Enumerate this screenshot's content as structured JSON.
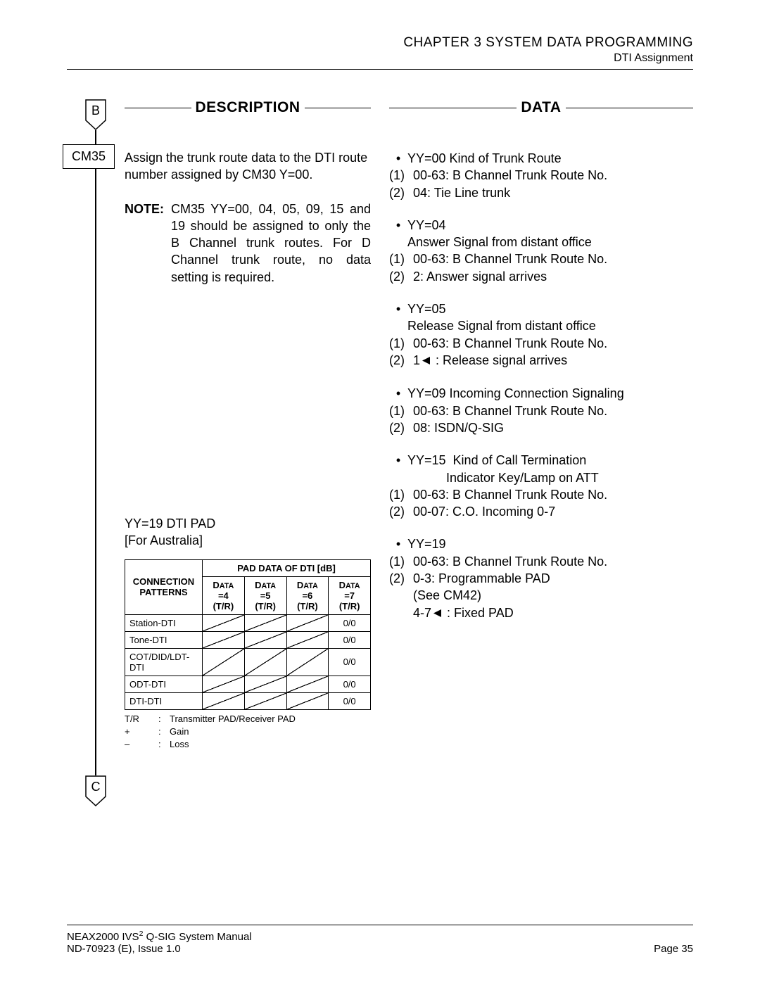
{
  "header": {
    "chapter": "CHAPTER 3  SYSTEM DATA PROGRAMMING",
    "section": "DTI Assignment"
  },
  "flow": {
    "start_connector": "B",
    "step_box": "CM35",
    "end_connector": "C"
  },
  "columns": {
    "description_header": "DESCRIPTION",
    "data_header": "DATA"
  },
  "description": {
    "assign_text": "Assign the trunk route data to the DTI route number assigned by CM30 Y=00.",
    "note_label": "NOTE:",
    "note_text": "CM35 YY=00, 04, 05, 09, 15 and 19 should be assigned to only the B Channel trunk routes. For D Channel trunk route, no data setting is required.",
    "pad_heading_line1": "YY=19 DTI PAD",
    "pad_heading_line2": "[For Australia]"
  },
  "data_items": [
    {
      "bullets": [
        "YY=00 Kind of Trunk Route"
      ],
      "numbered": [
        "00-63: B Channel Trunk Route No.",
        "04: Tie Line trunk"
      ]
    },
    {
      "bullets": [
        "YY=04",
        "Answer Signal from distant office"
      ],
      "numbered": [
        "00-63: B Channel Trunk Route No.",
        "2: Answer signal arrives"
      ]
    },
    {
      "bullets": [
        "YY=05",
        "Release Signal from distant office"
      ],
      "numbered": [
        "00-63: B Channel Trunk Route No.",
        {
          "prefix": "1",
          "tri": true,
          "suffix": " : Release signal arrives"
        }
      ]
    },
    {
      "bullets": [
        "YY=09 Incoming Connection Signaling"
      ],
      "numbered": [
        "00-63: B Channel Trunk Route No.",
        "08: ISDN/Q-SIG"
      ]
    },
    {
      "bullets": [
        "YY=15  Kind of Call Termination",
        "           Indicator Key/Lamp on ATT"
      ],
      "numbered": [
        "00-63: B Channel Trunk Route No.",
        "00-07: C.O. Incoming 0-7"
      ]
    },
    {
      "bullets": [
        "YY=19"
      ],
      "numbered": [
        "00-63: B Channel Trunk Route No.",
        "0-3: Programmable PAD"
      ],
      "extra_indented": [
        "(See CM42)"
      ],
      "extra_with_tri": {
        "prefix": "4-7",
        "suffix": " : Fixed PAD"
      }
    }
  ],
  "pad_table": {
    "top_header": "PAD DATA OF DTI [dB]",
    "row_header": "CONNECTION PATTERNS",
    "data_cols": [
      "DATA =4 (T/R)",
      "DATA =5 (T/R)",
      "DATA =6 (T/R)",
      "DATA =7 (T/R)"
    ],
    "rows": [
      {
        "label": "Station-DTI",
        "cells": [
          "diag",
          "diag",
          "diag",
          "0/0"
        ]
      },
      {
        "label": "Tone-DTI",
        "cells": [
          "diag",
          "diag",
          "diag",
          "0/0"
        ]
      },
      {
        "label": "COT/DID/LDT-DTI",
        "cells": [
          "diag",
          "diag",
          "diag",
          "0/0"
        ]
      },
      {
        "label": "ODT-DTI",
        "cells": [
          "diag",
          "diag",
          "diag",
          "0/0"
        ]
      },
      {
        "label": "DTI-DTI",
        "cells": [
          "diag",
          "diag",
          "diag",
          "0/0"
        ]
      }
    ],
    "legend": [
      {
        "k": "T/R",
        "v": "Transmitter PAD/Receiver PAD"
      },
      {
        "k": "+",
        "v": "Gain"
      },
      {
        "k": "–",
        "v": "Loss"
      }
    ]
  },
  "footer": {
    "manual_line1_pre": "NEAX2000 IVS",
    "manual_line1_sup": "2",
    "manual_line1_post": " Q-SIG System Manual",
    "manual_line2": "ND-70923 (E), Issue 1.0",
    "page": "Page 35"
  }
}
